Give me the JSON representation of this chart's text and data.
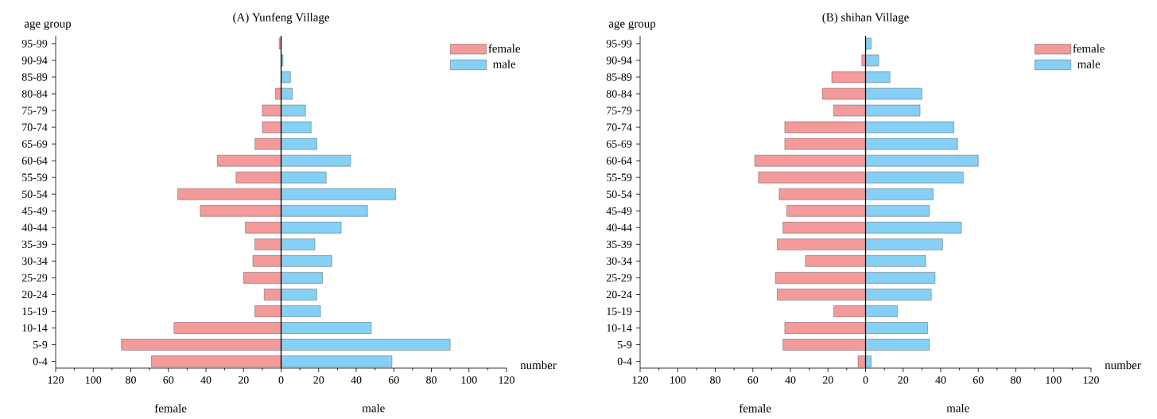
{
  "chart_data": [
    {
      "type": "bar",
      "orientation": "horizontal",
      "stacked": true,
      "title": "(A) Yunfeng Village",
      "ylabel": "age group",
      "xlabel": "number",
      "categories": [
        "95-99",
        "90-94",
        "85-89",
        "80-84",
        "75-79",
        "70-74",
        "65-69",
        "60-64",
        "55-59",
        "50-54",
        "45-49",
        "40-44",
        "35-39",
        "30-34",
        "25-29",
        "20-24",
        "15-19",
        "10-14",
        "5-9",
        "0-4"
      ],
      "series": [
        {
          "name": "female",
          "color": "#f59a9a",
          "values": [
            -1,
            0,
            0,
            -3,
            -10,
            -10,
            -14,
            -34,
            -24,
            -55,
            -43,
            -19,
            -14,
            -15,
            -20,
            -9,
            -14,
            -57,
            -85,
            -69
          ]
        },
        {
          "name": "male",
          "color": "#86d0f5",
          "values": [
            0,
            1,
            5,
            6,
            13,
            16,
            19,
            37,
            24,
            61,
            46,
            32,
            18,
            27,
            22,
            19,
            21,
            48,
            90,
            59
          ]
        }
      ],
      "xlim": [
        -120,
        120
      ],
      "xticks": [
        {
          "value": -120,
          "label": "120"
        },
        {
          "value": -100,
          "label": "100"
        },
        {
          "value": -80,
          "label": "80"
        },
        {
          "value": -60,
          "label": "60"
        },
        {
          "value": -40,
          "label": "40"
        },
        {
          "value": -20,
          "label": "20"
        },
        0,
        20,
        40,
        60,
        80,
        100,
        120
      ],
      "ref_lines": [
        {
          "axis": "x",
          "value": 0
        }
      ],
      "legend": "top right",
      "annotations": [
        "female",
        "male"
      ]
    },
    {
      "type": "bar",
      "orientation": "horizontal",
      "stacked": true,
      "title": "(B) shihan Village",
      "ylabel": "age group",
      "xlabel": "number",
      "categories": [
        "95-99",
        "90-94",
        "85-89",
        "80-84",
        "75-79",
        "70-74",
        "65-69",
        "60-64",
        "55-59",
        "50-54",
        "45-49",
        "40-44",
        "35-39",
        "30-34",
        "25-29",
        "20-24",
        "15-19",
        "10-14",
        "5-9",
        "0-4"
      ],
      "series": [
        {
          "name": "female",
          "color": "#f59a9a",
          "values": [
            0,
            -2,
            -18,
            -23,
            -17,
            -43,
            -43,
            -59,
            -57,
            -46,
            -42,
            -44,
            -47,
            -32,
            -48,
            -47,
            -17,
            -43,
            -44,
            -4
          ]
        },
        {
          "name": "male",
          "color": "#86d0f5",
          "values": [
            3,
            7,
            13,
            30,
            29,
            47,
            49,
            60,
            52,
            36,
            34,
            51,
            41,
            32,
            37,
            35,
            17,
            33,
            34,
            3
          ]
        }
      ],
      "xlim": [
        -120,
        120
      ],
      "xticks": [
        {
          "value": -120,
          "label": "120"
        },
        {
          "value": -100,
          "label": "100"
        },
        {
          "value": -80,
          "label": "80"
        },
        {
          "value": -60,
          "label": "60"
        },
        {
          "value": -40,
          "label": "40"
        },
        {
          "value": -20,
          "label": "20"
        },
        0,
        20,
        40,
        60,
        80,
        100,
        120
      ],
      "ref_lines": [
        {
          "axis": "x",
          "value": 0
        }
      ],
      "legend": "top right",
      "annotations": [
        "female",
        "male"
      ]
    }
  ]
}
